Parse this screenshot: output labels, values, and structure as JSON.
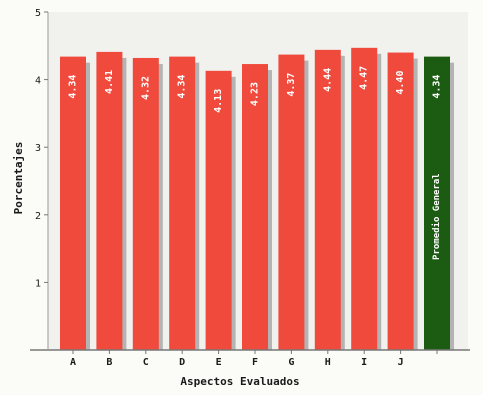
{
  "chart_data": {
    "type": "bar",
    "xlabel": "Aspectos Evaluados",
    "ylabel": "Porcentajes",
    "ylim": [
      0,
      5
    ],
    "yticks": [
      1,
      2,
      3,
      4,
      5
    ],
    "grid": false,
    "categories": [
      "A",
      "B",
      "C",
      "D",
      "E",
      "F",
      "G",
      "H",
      "I",
      "J",
      "Promedio General"
    ],
    "values": [
      4.34,
      4.41,
      4.32,
      4.34,
      4.13,
      4.23,
      4.37,
      4.44,
      4.47,
      4.4,
      4.34
    ],
    "value_labels": [
      "4.34",
      "4.41",
      "4.32",
      "4.34",
      "4.13",
      "4.23",
      "4.37",
      "4.44",
      "4.47",
      "4.40",
      "4.34"
    ],
    "tick_labels": [
      "A",
      "B",
      "C",
      "D",
      "E",
      "F",
      "G",
      "H",
      "I",
      "J",
      ""
    ],
    "colors": {
      "bar": "#f04a3c",
      "average_bar": "#1c5c12",
      "bar_shadow": "#b4b4b4",
      "plot_background": "#f1f1ee",
      "label_text": "#ffffff",
      "axis_text": "#1a1a1a",
      "axis_line": "#777777"
    }
  }
}
